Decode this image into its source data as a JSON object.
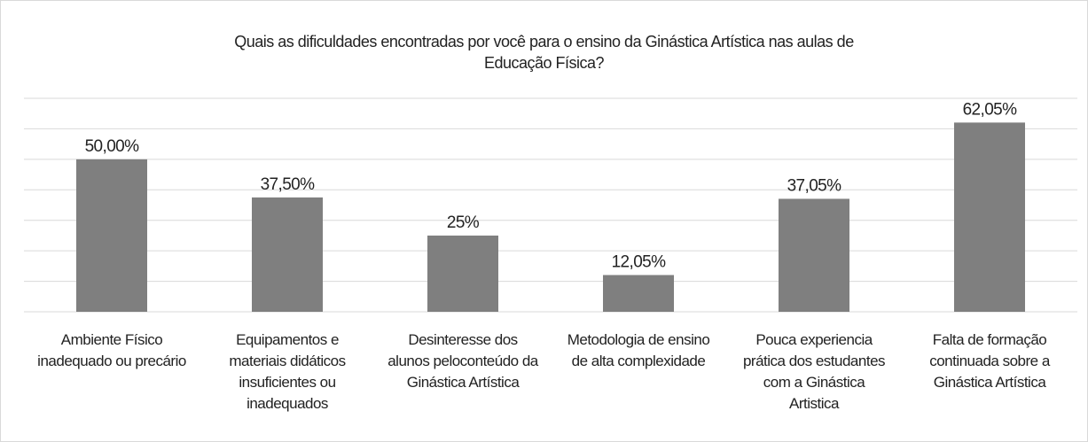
{
  "chart_data": {
    "type": "bar",
    "title": "Quais as dificuldades encontradas por você para o ensino da Ginástica Artística nas aulas de Educação Física?",
    "categories": [
      "Ambiente Físico inadequado ou precário",
      "Equipamentos e materiais didáticos insuficientes ou inadequados",
      "Desinteresse dos alunos peloconteúdo da Ginástica Artística",
      "Metodologia de ensino de alta complexidade",
      "Pouca experiencia prática dos estudantes com a Ginástica Artistica",
      "Falta de formação continuada sobre a Ginástica Artística"
    ],
    "values": [
      50,
      37.5,
      25,
      12.05,
      37.05,
      62.05
    ],
    "value_labels": [
      "50,00%",
      "37,50%",
      "25%",
      "12,05%",
      "37,05%",
      "62,05%"
    ],
    "color": "#7f7f7f",
    "ylim": [
      0,
      70
    ],
    "yticks": [
      0,
      10,
      20,
      30,
      40,
      50,
      60,
      70
    ],
    "grid": true
  }
}
